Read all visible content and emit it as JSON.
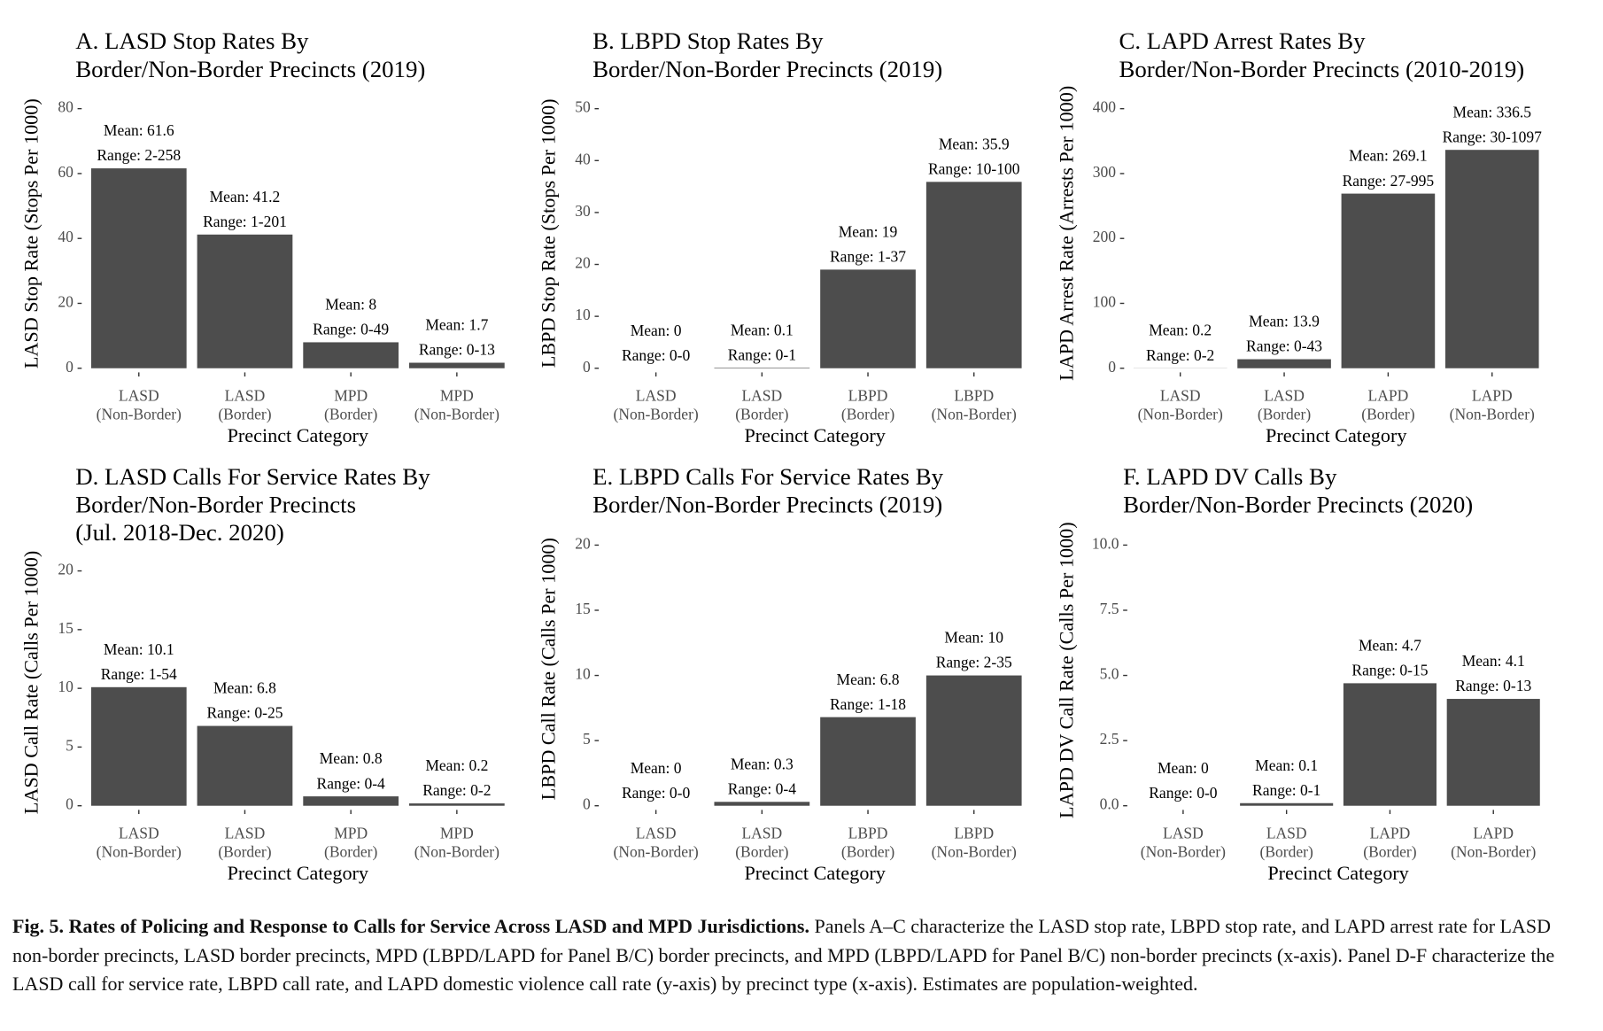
{
  "chart_data": [
    {
      "type": "bar",
      "title": [
        "A. LASD Stop Rates By",
        "Border/Non-Border Precincts (2019)"
      ],
      "x_label": "Precinct Category",
      "y_label": "LASD Stop Rate (Stops Per 1000)",
      "categories": [
        [
          "LASD",
          "(Non-Border)"
        ],
        [
          "LASD",
          "(Border)"
        ],
        [
          "MPD",
          "(Border)"
        ],
        [
          "MPD",
          "(Non-Border)"
        ]
      ],
      "values": [
        61.6,
        41.2,
        8,
        1.7
      ],
      "value_labels": [
        "Mean: 61.6",
        "Mean: 41.2",
        "Mean: 8",
        "Mean: 1.7"
      ],
      "range_labels": [
        "Range: 2-258",
        "Range: 1-201",
        "Range: 0-49",
        "Range: 0-13"
      ],
      "color": "#4d4d4d",
      "ylim": [
        0,
        83
      ],
      "yticks": [
        0,
        20,
        40,
        60,
        80
      ],
      "grid": false
    },
    {
      "type": "bar",
      "title": [
        "B. LBPD Stop Rates By",
        "Border/Non-Border Precincts (2019)"
      ],
      "x_label": "Precinct Category",
      "y_label": "LBPD Stop Rate (Stops Per 1000)",
      "categories": [
        [
          "LASD",
          "(Non-Border)"
        ],
        [
          "LASD",
          "(Border)"
        ],
        [
          "LBPD",
          "(Border)"
        ],
        [
          "LBPD",
          "(Non-Border)"
        ]
      ],
      "values": [
        0,
        0.1,
        19,
        35.9
      ],
      "value_labels": [
        "Mean: 0",
        "Mean: 0.1",
        "Mean: 19",
        "Mean: 35.9"
      ],
      "range_labels": [
        "Range: 0-0",
        "Range: 0-1",
        "Range: 1-37",
        "Range: 10-100"
      ],
      "color": "#4d4d4d",
      "ylim": [
        0,
        52
      ],
      "yticks": [
        0,
        10,
        20,
        30,
        40,
        50
      ],
      "grid": false
    },
    {
      "type": "bar",
      "title": [
        "C. LAPD Arrest Rates By",
        "Border/Non-Border Precincts (2010-2019)"
      ],
      "x_label": "Precinct Category",
      "y_label": "LAPD Arrest Rate (Arrests Per 1000)",
      "categories": [
        [
          "LASD",
          "(Non-Border)"
        ],
        [
          "LASD",
          "(Border)"
        ],
        [
          "LAPD",
          "(Border)"
        ],
        [
          "LAPD",
          "(Non-Border)"
        ]
      ],
      "values": [
        0.2,
        13.9,
        269.1,
        336.5
      ],
      "value_labels": [
        "Mean: 0.2",
        "Mean: 13.9",
        "Mean: 269.1",
        "Mean: 336.5"
      ],
      "range_labels": [
        "Range: 0-2",
        "Range: 0-43",
        "Range: 27-995",
        "Range: 30-1097"
      ],
      "color": "#4d4d4d",
      "ylim": [
        0,
        416
      ],
      "yticks": [
        0,
        100,
        200,
        300,
        400
      ],
      "grid": false
    },
    {
      "type": "bar",
      "title": [
        "D. LASD Calls For Service Rates By",
        "Border/Non-Border Precincts",
        "(Jul. 2018-Dec. 2020)"
      ],
      "x_label": "Precinct Category",
      "y_label": "LASD Call Rate (Calls Per 1000)",
      "categories": [
        [
          "LASD",
          "(Non-Border)"
        ],
        [
          "LASD",
          "(Border)"
        ],
        [
          "MPD",
          "(Border)"
        ],
        [
          "MPD",
          "(Non-Border)"
        ]
      ],
      "values": [
        10.1,
        6.8,
        0.8,
        0.2
      ],
      "value_labels": [
        "Mean: 10.1",
        "Mean: 6.8",
        "Mean: 0.8",
        "Mean: 0.2"
      ],
      "range_labels": [
        "Range: 1-54",
        "Range: 0-25",
        "Range: 0-4",
        "Range: 0-2"
      ],
      "color": "#4d4d4d",
      "ylim": [
        0,
        21
      ],
      "yticks": [
        0,
        5,
        10,
        15,
        20
      ],
      "grid": false
    },
    {
      "type": "bar",
      "title": [
        "E. LBPD Calls For Service Rates By",
        "Border/Non-Border Precincts (2019)"
      ],
      "x_label": "Precinct Category",
      "y_label": "LBPD Call Rate (Calls Per 1000)",
      "categories": [
        [
          "LASD",
          "(Non-Border)"
        ],
        [
          "LASD",
          "(Border)"
        ],
        [
          "LBPD",
          "(Border)"
        ],
        [
          "LBPD",
          "(Non-Border)"
        ]
      ],
      "values": [
        0,
        0.3,
        6.8,
        10
      ],
      "value_labels": [
        "Mean: 0",
        "Mean: 0.3",
        "Mean: 6.8",
        "Mean: 10"
      ],
      "range_labels": [
        "Range: 0-0",
        "Range: 0-4",
        "Range: 1-18",
        "Range: 2-35"
      ],
      "color": "#4d4d4d",
      "ylim": [
        0,
        21
      ],
      "yticks": [
        0,
        5,
        10,
        15,
        20
      ],
      "grid": false
    },
    {
      "type": "bar",
      "title": [
        "F. LAPD DV Calls By",
        "Border/Non-Border Precincts (2020)"
      ],
      "x_label": "Precinct Category",
      "y_label": "LAPD DV Call Rate (Calls Per 1000)",
      "categories": [
        [
          "LASD",
          "(Non-Border)"
        ],
        [
          "LASD",
          "(Border)"
        ],
        [
          "LAPD",
          "(Border)"
        ],
        [
          "LAPD",
          "(Non-Border)"
        ]
      ],
      "values": [
        0,
        0.1,
        4.7,
        4.1
      ],
      "value_labels": [
        "Mean: 0",
        "Mean: 0.1",
        "Mean: 4.7",
        "Mean: 4.1"
      ],
      "range_labels": [
        "Range: 0-0",
        "Range: 0-1",
        "Range: 0-15",
        "Range: 0-13"
      ],
      "color": "#4d4d4d",
      "ylim": [
        0,
        10.4
      ],
      "yticks": [
        {
          "value": 0,
          "label": "0.0"
        },
        2.5,
        {
          "value": 5,
          "label": "5.0"
        },
        7.5,
        {
          "value": 10,
          "label": "10.0"
        }
      ],
      "grid": false
    }
  ],
  "caption": {
    "title": "Fig. 5.  Rates of Policing and Response to Calls for Service Across LASD and MPD Jurisdictions.",
    "text": "Panels A–C characterize the LASD stop rate, LBPD stop rate, and LAPD arrest rate for LASD non-border precincts, LASD border precincts, MPD (LBPD/LAPD for Panel B/C) border precincts, and MPD (LBPD/LAPD for Panel B/C) non-border precincts (x-axis). Panel D-F characterize the LASD call for service rate, LBPD call rate, and LAPD domestic violence call rate (y-axis) by precinct type (x-axis). Estimates are population-weighted."
  }
}
